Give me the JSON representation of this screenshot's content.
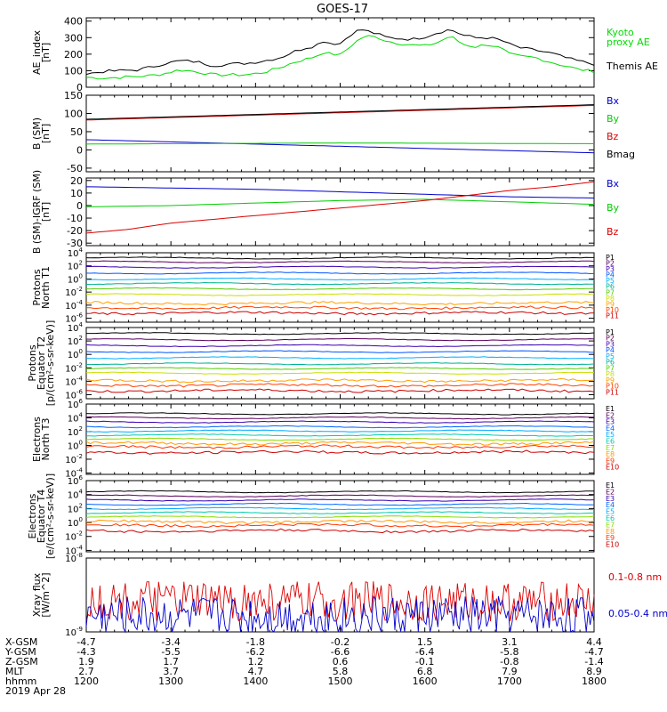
{
  "title": "GOES-17",
  "chart_data": [
    {
      "type": "line",
      "ylabel": [
        "AE_index",
        "[nT]"
      ],
      "ylim": [
        0,
        420
      ],
      "yticks": [
        0,
        100,
        200,
        300,
        400
      ],
      "scale": "linear",
      "series": [
        {
          "name": "Kyoto proxy AE",
          "name_lines": [
            "Kyoto",
            "proxy AE"
          ],
          "color": "#00dd00",
          "x": [
            12.0,
            12.2,
            12.4,
            12.6,
            12.75,
            12.9,
            13.1,
            13.3,
            13.5,
            13.7,
            13.9,
            14.1,
            14.3,
            14.45,
            14.6,
            14.7,
            14.8,
            14.9,
            15.0,
            15.15,
            15.25,
            15.35,
            15.45,
            15.55,
            15.7,
            15.85,
            16.0,
            16.15,
            16.3,
            16.45,
            16.6,
            16.75,
            16.9,
            17.0,
            17.15,
            17.3,
            17.5,
            17.65,
            17.8,
            18.0
          ],
          "y": [
            60,
            55,
            60,
            65,
            70,
            80,
            105,
            95,
            75,
            75,
            75,
            90,
            120,
            150,
            170,
            185,
            210,
            200,
            195,
            260,
            300,
            310,
            300,
            280,
            265,
            255,
            250,
            270,
            310,
            260,
            245,
            260,
            235,
            200,
            185,
            180,
            150,
            130,
            110,
            95
          ]
        },
        {
          "name": "Themis AE",
          "name_lines": [
            "Themis AE"
          ],
          "color": "#000000",
          "x": [
            12.0,
            12.2,
            12.4,
            12.6,
            12.75,
            12.9,
            13.1,
            13.3,
            13.5,
            13.7,
            13.9,
            14.1,
            14.3,
            14.45,
            14.6,
            14.7,
            14.8,
            14.9,
            15.0,
            15.15,
            15.25,
            15.35,
            15.45,
            15.55,
            15.7,
            15.85,
            16.0,
            16.15,
            16.3,
            16.45,
            16.6,
            16.75,
            16.9,
            17.0,
            17.15,
            17.3,
            17.5,
            17.65,
            17.8,
            18.0
          ],
          "y": [
            80,
            95,
            100,
            105,
            120,
            140,
            160,
            155,
            130,
            140,
            145,
            160,
            180,
            215,
            240,
            250,
            280,
            265,
            265,
            330,
            350,
            335,
            320,
            300,
            295,
            290,
            305,
            330,
            350,
            315,
            300,
            300,
            285,
            260,
            235,
            225,
            205,
            180,
            160,
            140
          ]
        }
      ]
    },
    {
      "type": "line",
      "ylabel": [
        "B (SM)",
        "[nT]"
      ],
      "ylim": [
        -60,
        150
      ],
      "yticks": [
        -50,
        0,
        50,
        100,
        150
      ],
      "scale": "linear",
      "series": [
        {
          "name": "Bx",
          "name_lines": [
            "Bx"
          ],
          "color": "#0000cc",
          "x": [
            12,
            18
          ],
          "y": [
            28,
            -8
          ]
        },
        {
          "name": "By",
          "name_lines": [
            "By"
          ],
          "color": "#00cc00",
          "x": [
            12,
            15,
            18
          ],
          "y": [
            16,
            19,
            17
          ]
        },
        {
          "name": "Bz",
          "name_lines": [
            "Bz"
          ],
          "color": "#dd0000",
          "x": [
            12,
            18
          ],
          "y": [
            82,
            122
          ]
        },
        {
          "name": "Bmag",
          "name_lines": [
            "Bmag"
          ],
          "color": "#000000",
          "x": [
            12,
            18
          ],
          "y": [
            84,
            124
          ]
        }
      ]
    },
    {
      "type": "line",
      "ylabel": [
        "B (SM)-IGRF (SM)",
        "[nT]"
      ],
      "ylim": [
        -32,
        22
      ],
      "yticks": [
        -30,
        -20,
        -10,
        0,
        10,
        20
      ],
      "scale": "linear",
      "series": [
        {
          "name": "Bx",
          "name_lines": [
            "Bx"
          ],
          "color": "#0000cc",
          "x": [
            12,
            13,
            14,
            15,
            16,
            17,
            18
          ],
          "y": [
            15,
            14,
            13,
            11,
            9,
            7,
            6
          ]
        },
        {
          "name": "By",
          "name_lines": [
            "By"
          ],
          "color": "#00cc00",
          "x": [
            12,
            13,
            14,
            15,
            16,
            17,
            18
          ],
          "y": [
            -1,
            0,
            2,
            4,
            5,
            3,
            1
          ]
        },
        {
          "name": "Bz",
          "name_lines": [
            "Bz"
          ],
          "color": "#dd0000",
          "x": [
            12,
            12.5,
            13,
            14,
            15,
            16,
            17,
            17.5,
            18
          ],
          "y": [
            -22,
            -19,
            -14,
            -8,
            -2,
            4,
            12,
            15,
            19
          ]
        }
      ]
    },
    {
      "type": "line",
      "ylabel": [
        "Protons",
        "North T1"
      ],
      "ylim": [
        -6.6,
        4
      ],
      "yticks": [
        4,
        2,
        0,
        -2,
        -4,
        -6
      ],
      "scale": "log",
      "series": [
        {
          "name": "P1",
          "color": "#000000",
          "level": 3.2
        },
        {
          "name": "P2",
          "color": "#5b005b",
          "level": 2.6
        },
        {
          "name": "P3",
          "color": "#3a00b0",
          "level": 1.8
        },
        {
          "name": "P4",
          "color": "#0055ff",
          "level": 0.9
        },
        {
          "name": "P5",
          "color": "#00b0ff",
          "level": 0.0
        },
        {
          "name": "P6",
          "color": "#00b090",
          "level": -0.7
        },
        {
          "name": "P7",
          "color": "#55cc00",
          "level": -1.5
        },
        {
          "name": "P8",
          "color": "#c8e000",
          "level": -2.4
        },
        {
          "name": "P9",
          "color": "#ffa000",
          "level": -3.7
        },
        {
          "name": "P10",
          "color": "#ff4000",
          "level": -4.4
        },
        {
          "name": "P11",
          "color": "#cc0000",
          "level": -5.2
        }
      ]
    },
    {
      "type": "line",
      "ylabel": [
        "Protons",
        "Equator T2",
        "[p/(cm²-s-sr-keV)]"
      ],
      "ylim": [
        -6.6,
        4
      ],
      "yticks": [
        4,
        2,
        0,
        -2,
        -4,
        -6
      ],
      "scale": "log",
      "series": [
        {
          "name": "P1",
          "color": "#000000",
          "level": 3.1
        },
        {
          "name": "P2",
          "color": "#5b005b",
          "level": 2.2
        },
        {
          "name": "P3",
          "color": "#3a00b0",
          "level": 1.3
        },
        {
          "name": "P4",
          "color": "#0055ff",
          "level": 0.4
        },
        {
          "name": "P5",
          "color": "#00b0ff",
          "level": -0.5
        },
        {
          "name": "P6",
          "color": "#00b090",
          "level": -1.4
        },
        {
          "name": "P7",
          "color": "#55cc00",
          "level": -2.1
        },
        {
          "name": "P8",
          "color": "#c8e000",
          "level": -2.8
        },
        {
          "name": "P9",
          "color": "#ffa000",
          "level": -3.9
        },
        {
          "name": "P10",
          "color": "#ff4000",
          "level": -4.6
        },
        {
          "name": "P11",
          "color": "#cc0000",
          "level": -5.4
        }
      ]
    },
    {
      "type": "line",
      "ylabel": [
        "Electrons",
        "North T3"
      ],
      "ylim": [
        -4.2,
        6
      ],
      "yticks": [
        6,
        4,
        2,
        0,
        -2,
        -4
      ],
      "scale": "log",
      "series": [
        {
          "name": "E1",
          "color": "#000000",
          "level": 4.6
        },
        {
          "name": "E2",
          "color": "#5b005b",
          "level": 4.0
        },
        {
          "name": "E3",
          "color": "#3a00b0",
          "level": 3.4
        },
        {
          "name": "E4",
          "color": "#0066ff",
          "level": 2.7
        },
        {
          "name": "E5",
          "color": "#00aaff",
          "level": 2.1
        },
        {
          "name": "E6",
          "color": "#00ccaa",
          "level": 1.5
        },
        {
          "name": "E7",
          "color": "#88dd00",
          "level": 0.9
        },
        {
          "name": "E8",
          "color": "#ff9900",
          "level": 0.3
        },
        {
          "name": "E9",
          "color": "#ff3300",
          "level": -0.2
        },
        {
          "name": "E10",
          "color": "#cc0000",
          "level": -1.0
        }
      ]
    },
    {
      "type": "line",
      "ylabel": [
        "Electrons",
        "Equator T4",
        "[e/(cm²-s-sr-keV)]"
      ],
      "ylim": [
        -4.2,
        6
      ],
      "yticks": [
        6,
        4,
        2,
        0,
        -2,
        -4
      ],
      "scale": "log",
      "series": [
        {
          "name": "E1",
          "color": "#000000",
          "level": 4.4
        },
        {
          "name": "E2",
          "color": "#5b005b",
          "level": 3.8
        },
        {
          "name": "E3",
          "color": "#3a00b0",
          "level": 3.2
        },
        {
          "name": "E4",
          "color": "#0066ff",
          "level": 2.6
        },
        {
          "name": "E5",
          "color": "#00aaff",
          "level": 2.0
        },
        {
          "name": "E6",
          "color": "#00ccaa",
          "level": 1.4
        },
        {
          "name": "E7",
          "color": "#88dd00",
          "level": 0.8
        },
        {
          "name": "E8",
          "color": "#ff9900",
          "level": 0.1
        },
        {
          "name": "E9",
          "color": "#ff3300",
          "level": -0.4
        },
        {
          "name": "E10",
          "color": "#cc0000",
          "level": -1.2
        }
      ]
    },
    {
      "type": "line",
      "ylabel": [
        "Xray flux",
        "[W/m^2]"
      ],
      "ylim": [
        -9,
        -8
      ],
      "yticks": [
        -8,
        -9
      ],
      "scale": "log",
      "series": [
        {
          "name": "0.1-0.8 nm",
          "name_lines": [
            "0.1-0.8 nm"
          ],
          "color": "#dd0000",
          "level": -8.7
        },
        {
          "name": "0.05-0.4 nm",
          "name_lines": [
            "0.05-0.4 nm"
          ],
          "color": "#0000cc",
          "level": -8.9
        }
      ]
    }
  ],
  "x_axis": {
    "xlim": [
      12,
      18
    ],
    "ticks": [
      12,
      13,
      14,
      15,
      16,
      17,
      18
    ],
    "rows": [
      {
        "label": "X-GSM",
        "values": [
          "-4.7",
          "-3.4",
          "-1.8",
          "-0.2",
          "1.5",
          "3.1",
          "4.4"
        ]
      },
      {
        "label": "Y-GSM",
        "values": [
          "-4.3",
          "-5.5",
          "-6.2",
          "-6.6",
          "-6.4",
          "-5.8",
          "-4.7"
        ]
      },
      {
        "label": "Z-GSM",
        "values": [
          "1.9",
          "1.7",
          "1.2",
          "0.6",
          "-0.1",
          "-0.8",
          "-1.4"
        ]
      },
      {
        "label": "MLT",
        "values": [
          "2.7",
          "3.7",
          "4.7",
          "5.8",
          "6.8",
          "7.9",
          "8.9"
        ]
      },
      {
        "label": "hhmm",
        "values": [
          "1200",
          "1300",
          "1400",
          "1500",
          "1600",
          "1700",
          "1800"
        ]
      }
    ],
    "date": "2019 Apr 28"
  }
}
